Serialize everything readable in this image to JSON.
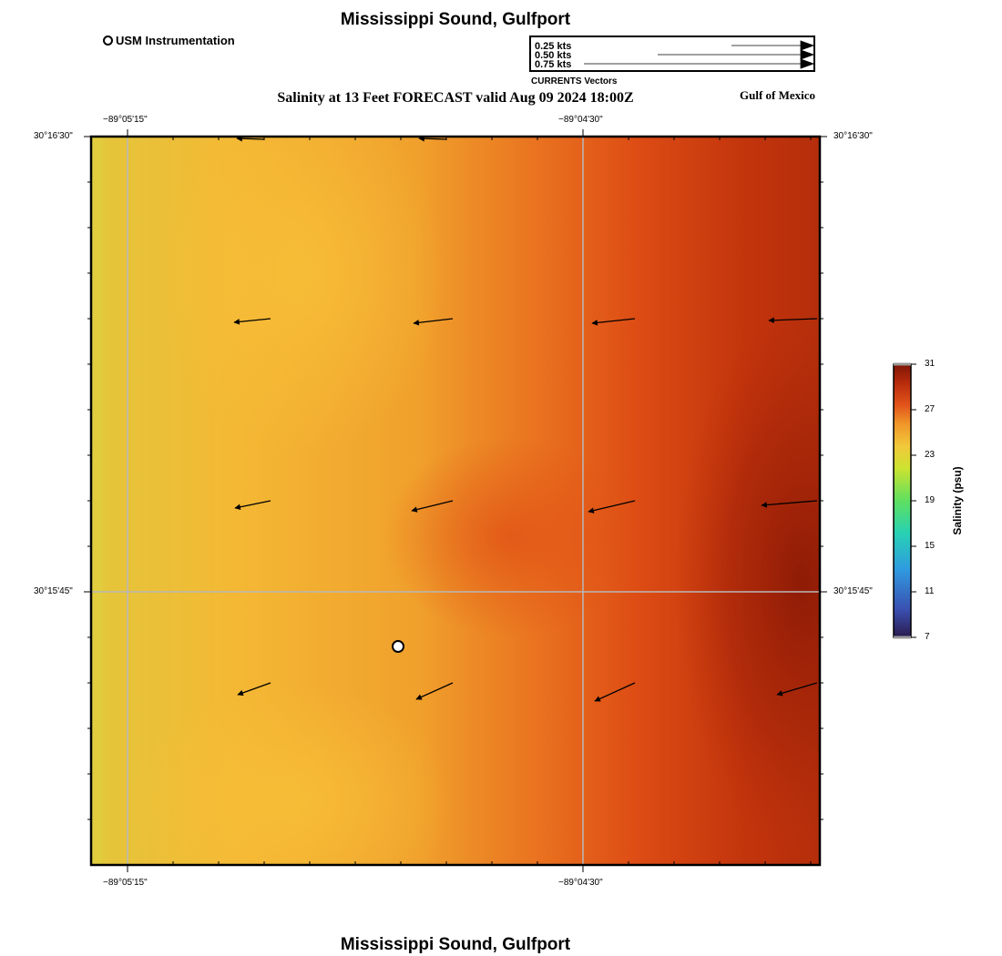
{
  "header": {
    "title": "Mississippi Sound, Gulfport",
    "subtitle": "Salinity at 13 Feet FORECAST valid Aug 09 2024 18:00Z",
    "region": "Gulf of Mexico",
    "instrument_legend": "USM Instrumentation"
  },
  "vector_legend": {
    "title": "CURRENTS Vectors",
    "entries": [
      "0.25 kts",
      "0.50 kts",
      "0.75 kts"
    ]
  },
  "axes": {
    "top_lon": [
      "−89°05'15\"",
      "−89°04'30\""
    ],
    "bottom_lon": [
      "−89°05'15\"",
      "−89°04'30\""
    ],
    "left_lat": [
      "30°16'30\"",
      "30°15'45\""
    ],
    "right_lat": [
      "30°16'30\"",
      "30°15'45\""
    ]
  },
  "colorbar": {
    "title": "Salinity (psu)",
    "ticks": [
      "31",
      "27",
      "23",
      "19",
      "15",
      "11",
      "7"
    ],
    "min": 7,
    "max": 31,
    "colors": [
      "#2b1a4d",
      "#3a4fb0",
      "#2f9be0",
      "#27d1b4",
      "#5fe060",
      "#cde330",
      "#f2c83a",
      "#f0982a",
      "#e2541a",
      "#b82c0c",
      "#7e1505"
    ]
  },
  "footer": {
    "title": "Mississippi Sound, Gulfport"
  }
}
